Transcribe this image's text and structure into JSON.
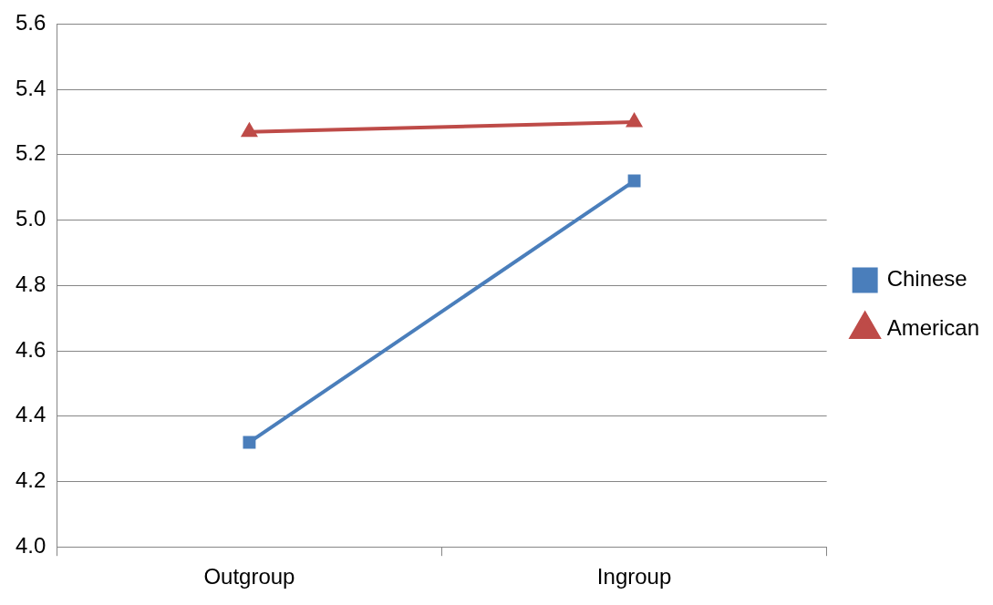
{
  "chart_data": {
    "type": "line",
    "categories": [
      "Outgroup",
      "Ingroup"
    ],
    "series": [
      {
        "name": "Chinese",
        "color": "#4a7ebb",
        "values": [
          4.32,
          5.12
        ],
        "marker": "square"
      },
      {
        "name": "American",
        "color": "#be4b48",
        "values": [
          5.27,
          5.3
        ],
        "marker": "triangle"
      }
    ],
    "ylim": [
      4.0,
      5.6
    ],
    "yticks": [
      {
        "value": 4.0,
        "label": "4.0"
      },
      {
        "value": 4.2,
        "label": "4.2"
      },
      {
        "value": 4.4,
        "label": "4.4"
      },
      {
        "value": 4.6,
        "label": "4.6"
      },
      {
        "value": 4.8,
        "label": "4.8"
      },
      {
        "value": 5.0,
        "label": "5.0"
      },
      {
        "value": 5.2,
        "label": "5.2"
      },
      {
        "value": 5.4,
        "label": "5.4"
      },
      {
        "value": 5.6,
        "label": "5.6"
      }
    ],
    "grid": "y",
    "legend": "right",
    "line_style": "solid"
  }
}
